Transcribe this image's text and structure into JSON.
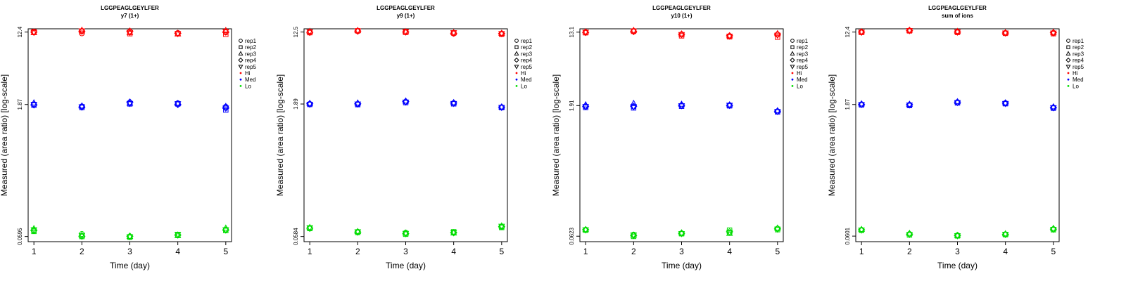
{
  "chart_data": [
    {
      "type": "scatter",
      "title": "LGGPEAGLGEYLFER",
      "subtitle": "y7 (1+)",
      "xlabel": "Time (day)",
      "ylabel": "Measured (area ratio) [log-scale]",
      "x": [
        1,
        2,
        3,
        4,
        5
      ],
      "x_ticks": [
        "1",
        "2",
        "3",
        "4",
        "5"
      ],
      "y_scale": "log",
      "y_ticks": [
        0.0595,
        1.87,
        12.4
      ],
      "y_tick_labels": [
        "0.0595",
        "1.87",
        "12.4"
      ],
      "ylim": [
        0.052,
        13.5
      ],
      "grid": false,
      "legend": {
        "entries": [
          "rep1",
          "rep2",
          "rep3",
          "rep4",
          "rep5",
          "Hi",
          "Med",
          "Lo"
        ],
        "position": "right"
      },
      "levels": [
        {
          "name": "Hi",
          "color": "#ff0000",
          "values": [
            [
              12.4,
              12.0,
              12.5,
              12.1,
              12.3
            ],
            [
              12.5,
              12.6,
              11.9,
              11.9,
              11.7
            ],
            [
              12.2,
              13.0,
              12.2,
              11.8,
              12.9
            ],
            [
              12.4,
              12.7,
              12.7,
              12.0,
              12.4
            ],
            [
              12.3,
              12.8,
              12.3,
              11.9,
              12.6
            ]
          ]
        },
        {
          "name": "Med",
          "color": "#0000ff",
          "values": [
            [
              1.88,
              1.78,
              1.96,
              1.93,
              1.76
            ],
            [
              1.84,
              1.73,
              1.9,
              1.9,
              1.62
            ],
            [
              1.95,
              1.8,
              1.93,
              1.92,
              1.78
            ],
            [
              1.85,
              1.75,
              1.99,
              1.87,
              1.71
            ],
            [
              1.88,
              1.76,
              1.92,
              1.91,
              1.7
            ]
          ]
        },
        {
          "name": "Lo",
          "color": "#00dd00",
          "values": [
            [
              0.069,
              0.0635,
              0.059,
              0.062,
              0.0715
            ],
            [
              0.068,
              0.0595,
              0.0585,
              0.0625,
              0.0695
            ],
            [
              0.073,
              0.0612,
              0.0595,
              0.0608,
              0.074
            ],
            [
              0.07,
              0.06,
              0.06,
              0.0618,
              0.0705
            ],
            [
              0.071,
              0.061,
              0.0592,
              0.063,
              0.071
            ]
          ]
        }
      ]
    },
    {
      "type": "scatter",
      "title": "LGGPEAGLGEYLFER",
      "subtitle": "y9 (1+)",
      "xlabel": "Time (day)",
      "ylabel": "Measured (area ratio) [log-scale]",
      "x": [
        1,
        2,
        3,
        4,
        5
      ],
      "x_ticks": [
        "1",
        "2",
        "3",
        "4",
        "5"
      ],
      "y_scale": "log",
      "y_ticks": [
        0.0584,
        1.89,
        12.5
      ],
      "y_tick_labels": [
        "0.0584",
        "1.89",
        "12.5"
      ],
      "ylim": [
        0.051,
        13.6
      ],
      "grid": false,
      "legend": {
        "entries": [
          "rep1",
          "rep2",
          "rep3",
          "rep4",
          "rep5",
          "Hi",
          "Med",
          "Lo"
        ],
        "position": "right"
      },
      "levels": [
        {
          "name": "Hi",
          "color": "#ff0000",
          "values": [
            [
              12.5,
              12.8,
              12.6,
              12.0,
              11.9
            ],
            [
              12.3,
              12.9,
              12.4,
              12.2,
              11.8
            ],
            [
              12.7,
              13.0,
              12.6,
              12.3,
              12.1
            ],
            [
              12.4,
              12.8,
              12.5,
              12.1,
              12.0
            ],
            [
              12.6,
              12.9,
              12.7,
              12.3,
              12.0
            ]
          ]
        },
        {
          "name": "Med",
          "color": "#0000ff",
          "values": [
            [
              1.89,
              1.88,
              2.0,
              1.93,
              1.73
            ],
            [
              1.87,
              1.86,
              1.96,
              1.9,
              1.72
            ],
            [
              1.92,
              1.94,
              2.04,
              1.96,
              1.75
            ],
            [
              1.9,
              1.9,
              2.02,
              1.94,
              1.74
            ],
            [
              1.88,
              1.89,
              1.99,
              1.92,
              1.73
            ]
          ]
        },
        {
          "name": "Lo",
          "color": "#00dd00",
          "values": [
            [
              0.073,
              0.066,
              0.0645,
              0.065,
              0.075
            ],
            [
              0.072,
              0.065,
              0.062,
              0.066,
              0.074
            ],
            [
              0.074,
              0.0665,
              0.064,
              0.064,
              0.077
            ],
            [
              0.0725,
              0.0655,
              0.063,
              0.0645,
              0.076
            ],
            [
              0.0735,
              0.0662,
              0.0635,
              0.0652,
              0.0765
            ]
          ]
        }
      ]
    },
    {
      "type": "scatter",
      "title": "LGGPEAGLGEYLFER",
      "subtitle": "y10 (1+)",
      "xlabel": "Time (day)",
      "ylabel": "Measured (area ratio) [log-scale]",
      "x": [
        1,
        2,
        3,
        4,
        5
      ],
      "x_ticks": [
        "1",
        "2",
        "3",
        "4",
        "5"
      ],
      "y_scale": "log",
      "y_ticks": [
        0.0623,
        1.91,
        13.1
      ],
      "y_tick_labels": [
        "0.0623",
        "1.91",
        "13.1"
      ],
      "ylim": [
        0.054,
        14.3
      ],
      "grid": false,
      "legend": {
        "entries": [
          "rep1",
          "rep2",
          "rep3",
          "rep4",
          "rep5",
          "Hi",
          "Med",
          "Lo"
        ],
        "position": "right"
      },
      "levels": [
        {
          "name": "Hi",
          "color": "#ff0000",
          "values": [
            [
              13.1,
              13.5,
              12.3,
              11.8,
              12.3
            ],
            [
              12.9,
              13.4,
              11.9,
              11.6,
              11.5
            ],
            [
              13.2,
              13.7,
              12.5,
              11.9,
              12.6
            ],
            [
              13.0,
              13.3,
              12.4,
              11.9,
              12.4
            ],
            [
              13.1,
              13.5,
              12.3,
              11.8,
              12.1
            ]
          ]
        },
        {
          "name": "Med",
          "color": "#0000ff",
          "values": [
            [
              1.86,
              1.86,
              1.92,
              1.93,
              1.64
            ],
            [
              1.82,
              1.8,
              1.88,
              1.9,
              1.62
            ],
            [
              1.95,
              2.02,
              1.98,
              1.95,
              1.67
            ],
            [
              1.88,
              1.88,
              1.93,
              1.92,
              1.65
            ],
            [
              1.87,
              1.86,
              1.91,
              1.93,
              1.64
            ]
          ]
        },
        {
          "name": "Lo",
          "color": "#00dd00",
          "values": [
            [
              0.0735,
              0.065,
              0.067,
              0.068,
              0.076
            ],
            [
              0.073,
              0.062,
              0.0665,
              0.073,
              0.074
            ],
            [
              0.074,
              0.064,
              0.068,
              0.067,
              0.077
            ],
            [
              0.0738,
              0.0635,
              0.0672,
              0.07,
              0.0755
            ],
            [
              0.0736,
              0.0645,
              0.0668,
              0.069,
              0.075
            ]
          ]
        }
      ]
    },
    {
      "type": "scatter",
      "title": "LGGPEAGLGEYLFER",
      "subtitle": "sum of ions",
      "xlabel": "Time (day)",
      "ylabel": "Measured (area ratio) [log-scale]",
      "x": [
        1,
        2,
        3,
        4,
        5
      ],
      "x_ticks": [
        "1",
        "2",
        "3",
        "4",
        "5"
      ],
      "y_scale": "log",
      "y_ticks": [
        0.0601,
        1.87,
        12.4
      ],
      "y_tick_labels": [
        "0.0601",
        "1.87",
        "12.4"
      ],
      "ylim": [
        0.052,
        13.5
      ],
      "grid": false,
      "legend": {
        "entries": [
          "rep1",
          "rep2",
          "rep3",
          "rep4",
          "rep5",
          "Hi",
          "Med",
          "Lo"
        ],
        "position": "right"
      },
      "levels": [
        {
          "name": "Hi",
          "color": "#ff0000",
          "values": [
            [
              12.4,
              12.9,
              12.5,
              12.1,
              12.1
            ],
            [
              12.3,
              12.8,
              12.3,
              12.0,
              11.9
            ],
            [
              12.5,
              13.0,
              12.6,
              12.2,
              12.3
            ],
            [
              12.4,
              12.9,
              12.4,
              12.1,
              12.2
            ],
            [
              12.4,
              12.9,
              12.5,
              12.1,
              12.1
            ]
          ]
        },
        {
          "name": "Med",
          "color": "#0000ff",
          "values": [
            [
              1.87,
              1.85,
              1.98,
              1.93,
              1.72
            ],
            [
              1.85,
              1.82,
              1.95,
              1.91,
              1.7
            ],
            [
              1.9,
              1.88,
              2.01,
              1.95,
              1.76
            ],
            [
              1.88,
              1.86,
              1.99,
              1.94,
              1.73
            ],
            [
              1.87,
              1.85,
              1.97,
              1.92,
              1.72
            ]
          ]
        },
        {
          "name": "Lo",
          "color": "#00dd00",
          "values": [
            [
              0.0705,
              0.0635,
              0.0615,
              0.063,
              0.072
            ],
            [
              0.07,
              0.062,
              0.0605,
              0.0625,
              0.071
            ],
            [
              0.0715,
              0.0645,
              0.0612,
              0.0638,
              0.0735
            ],
            [
              0.0708,
              0.0632,
              0.061,
              0.0628,
              0.0722
            ],
            [
              0.0706,
              0.0628,
              0.0608,
              0.0632,
              0.0718
            ]
          ]
        }
      ]
    }
  ]
}
